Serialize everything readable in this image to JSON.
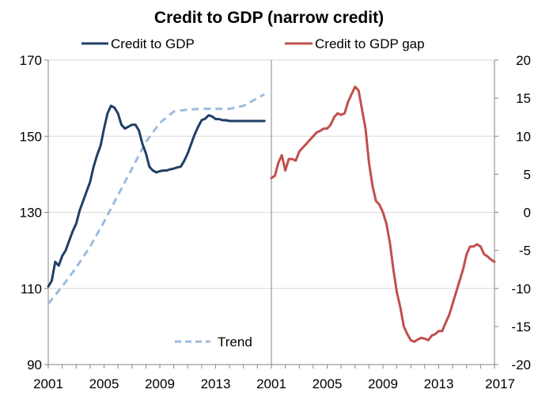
{
  "chart_data": {
    "type": "line",
    "title": "Credit to GDP (narrow credit)",
    "panels": [
      {
        "name": "left",
        "xlim": [
          2001,
          2017
        ],
        "ylim": [
          90,
          170
        ],
        "y_ticks": [
          90,
          110,
          130,
          150,
          170
        ],
        "y_tick_labels": [
          "90",
          "110",
          "130",
          "150",
          "170"
        ],
        "x_ticks": [
          2001,
          2005,
          2009,
          2013
        ],
        "x_tick_labels": [
          "2001",
          "2005",
          "2009",
          "2013"
        ],
        "series": [
          {
            "name": "Credit to GDP",
            "color": "#1f3f66",
            "style": "solid",
            "x": [
              2001.0,
              2001.25,
              2001.5,
              2001.75,
              2002.0,
              2002.25,
              2002.5,
              2002.75,
              2003.0,
              2003.25,
              2003.5,
              2003.75,
              2004.0,
              2004.25,
              2004.5,
              2004.75,
              2005.0,
              2005.25,
              2005.5,
              2005.75,
              2006.0,
              2006.25,
              2006.5,
              2006.75,
              2007.0,
              2007.25,
              2007.5,
              2007.75,
              2008.0,
              2008.25,
              2008.5,
              2008.75,
              2009.0,
              2009.25,
              2009.5,
              2009.75,
              2010.0,
              2010.25,
              2010.5,
              2010.75,
              2011.0,
              2011.25,
              2011.5,
              2011.75,
              2012.0,
              2012.25,
              2012.5,
              2012.75,
              2013.0,
              2013.25,
              2013.5,
              2013.75,
              2014.0,
              2014.25,
              2014.5,
              2014.75,
              2015.0,
              2015.25,
              2015.5,
              2015.75,
              2016.0,
              2016.25,
              2016.5
            ],
            "values": [
              110.5,
              112,
              117,
              116,
              118.5,
              120,
              122.5,
              125,
              127,
              130.5,
              133,
              135.5,
              138,
              142,
              145,
              147.5,
              152,
              156,
              158,
              157.5,
              156,
              153,
              152,
              152.5,
              153,
              153,
              151.5,
              148,
              145.5,
              142,
              141,
              140.5,
              140.8,
              141,
              141,
              141.3,
              141.5,
              141.8,
              142,
              143.5,
              145.5,
              148,
              150.5,
              152.5,
              154.2,
              154.6,
              155.5,
              155.2,
              154.5,
              154.5,
              154.2,
              154.2,
              154,
              154,
              154,
              154,
              154,
              154,
              154,
              154,
              154,
              154,
              154
            ]
          },
          {
            "name": "Trend",
            "color": "#9dbbde",
            "style": "dashed",
            "x": [
              2001.0,
              2002.0,
              2003.0,
              2004.0,
              2005.0,
              2006.0,
              2007.0,
              2008.0,
              2009.0,
              2010.0,
              2011.0,
              2012.0,
              2013.0,
              2014.0,
              2015.0,
              2016.0,
              2016.5
            ],
            "values": [
              106,
              110.5,
              115.5,
              121,
              127.5,
              134.5,
              141.5,
              148.5,
              153.5,
              156.5,
              157,
              157.2,
              157.2,
              157.2,
              158,
              160,
              161
            ]
          }
        ]
      },
      {
        "name": "right",
        "xlim": [
          2001,
          2017
        ],
        "ylim": [
          -20,
          20
        ],
        "y_ticks": [
          -20,
          -15,
          -10,
          -5,
          0,
          5,
          10,
          15,
          20
        ],
        "y_tick_labels": [
          "-20",
          "-15",
          "-10",
          "-5",
          "0",
          "5",
          "10",
          "15",
          "20"
        ],
        "x_ticks": [
          2001,
          2005,
          2009,
          2013,
          2017
        ],
        "x_tick_labels": [
          "2001",
          "2005",
          "2009",
          "2013",
          "2017"
        ],
        "series": [
          {
            "name": "Credit to GDP gap",
            "color": "#c0504d",
            "style": "solid",
            "x": [
              2001.0,
              2001.25,
              2001.5,
              2001.75,
              2002.0,
              2002.25,
              2002.5,
              2002.75,
              2003.0,
              2003.25,
              2003.5,
              2003.75,
              2004.0,
              2004.25,
              2004.5,
              2004.75,
              2005.0,
              2005.25,
              2005.5,
              2005.75,
              2006.0,
              2006.25,
              2006.5,
              2006.75,
              2007.0,
              2007.25,
              2007.5,
              2007.75,
              2008.0,
              2008.25,
              2008.5,
              2008.75,
              2009.0,
              2009.25,
              2009.5,
              2009.75,
              2010.0,
              2010.25,
              2010.5,
              2010.75,
              2011.0,
              2011.25,
              2011.5,
              2011.75,
              2012.0,
              2012.25,
              2012.5,
              2012.75,
              2013.0,
              2013.25,
              2013.5,
              2013.75,
              2014.0,
              2014.25,
              2014.5,
              2014.75,
              2015.0,
              2015.25,
              2015.5,
              2015.75,
              2016.0,
              2016.25,
              2016.5,
              2016.75,
              2017.0
            ],
            "values": [
              4.5,
              4.8,
              6.5,
              7.5,
              5.5,
              7,
              7,
              6.8,
              8,
              8.5,
              9,
              9.5,
              10,
              10.5,
              10.7,
              11,
              11,
              11.5,
              12.5,
              13,
              12.8,
              13,
              14.5,
              15.5,
              16.5,
              16,
              13.5,
              11,
              6.5,
              3.5,
              1.5,
              1,
              0,
              -1.5,
              -4,
              -7.5,
              -10.5,
              -12.5,
              -15,
              -16,
              -16.8,
              -17,
              -16.7,
              -16.5,
              -16.6,
              -16.8,
              -16.2,
              -16,
              -15.6,
              -15.6,
              -14.5,
              -13.5,
              -12,
              -10.5,
              -9,
              -7.5,
              -5.5,
              -4.5,
              -4.5,
              -4.2,
              -4.5,
              -5.5,
              -5.8,
              -6.2,
              -6.5
            ]
          }
        ]
      }
    ],
    "legend": [
      {
        "label": "Credit to GDP",
        "color": "#1f3f66",
        "style": "solid",
        "placement": "top-left"
      },
      {
        "label": "Credit to GDP gap",
        "color": "#c0504d",
        "style": "solid",
        "placement": "top-right"
      },
      {
        "label": "Trend",
        "color": "#9dbbde",
        "style": "dashed",
        "placement": "bottom-left-inside"
      }
    ],
    "grid": true,
    "grid_color": "#d9d9d9",
    "axis_color": "#868686"
  }
}
